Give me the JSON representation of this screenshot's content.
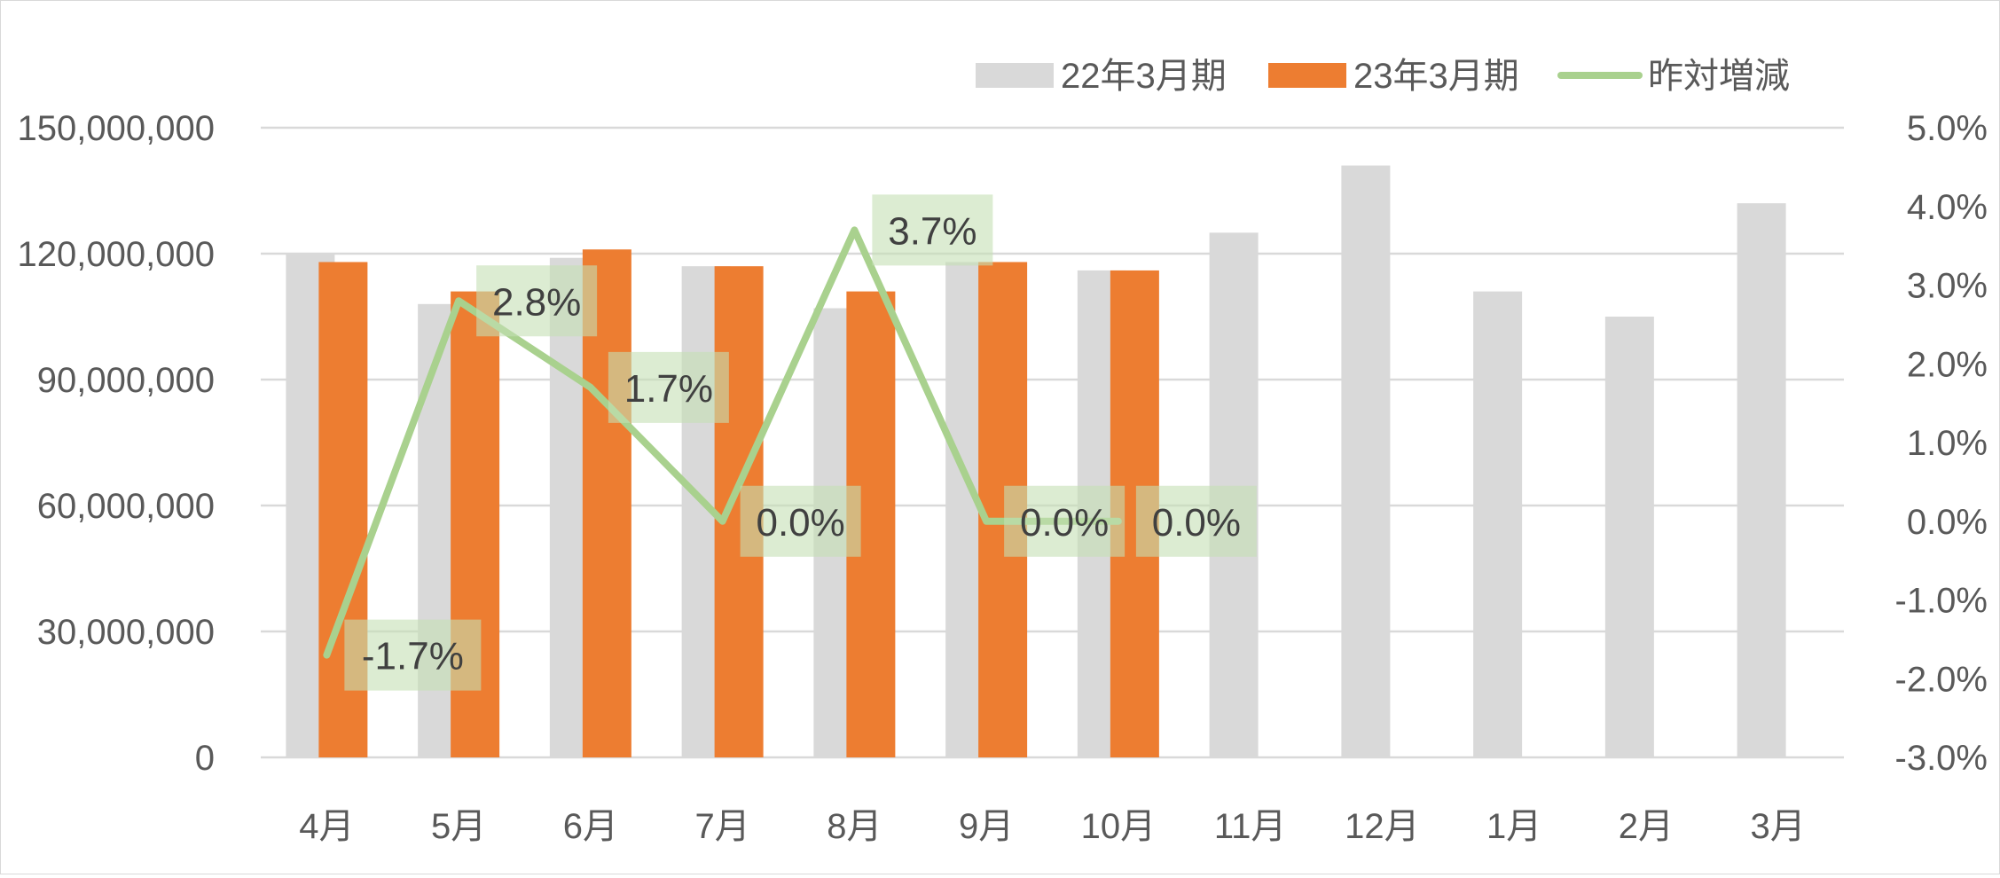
{
  "chart_data": {
    "type": "bar",
    "categories": [
      "4月",
      "5月",
      "6月",
      "7月",
      "8月",
      "9月",
      "10月",
      "11月",
      "12月",
      "1月",
      "2月",
      "3月"
    ],
    "series": [
      {
        "name": "22年3月期",
        "type": "bar",
        "axis": "left",
        "values": [
          120000000,
          108000000,
          119000000,
          117000000,
          107000000,
          118000000,
          116000000,
          125000000,
          141000000,
          111000000,
          105000000,
          132000000
        ]
      },
      {
        "name": "23年3月期",
        "type": "bar",
        "axis": "right-of-pair",
        "values": [
          118000000,
          111000000,
          121000000,
          117000000,
          111000000,
          118000000,
          116000000,
          null,
          null,
          null,
          null,
          null
        ]
      },
      {
        "name": "昨対増減",
        "type": "line",
        "axis": "secondary",
        "values": [
          -1.7,
          2.8,
          1.7,
          0.0,
          3.7,
          0.0,
          0.0,
          null,
          null,
          null,
          null,
          null
        ],
        "data_labels": [
          "-1.7%",
          "2.8%",
          "1.7%",
          "0.0%",
          "3.7%",
          "0.0%",
          "0.0%"
        ]
      }
    ],
    "y_axis": {
      "ylim": [
        0,
        150000000
      ],
      "ticks": [
        0,
        30000000,
        60000000,
        90000000,
        120000000,
        150000000
      ],
      "tick_labels": [
        "0",
        "30,000,000",
        "60,000,000",
        "90,000,000",
        "120,000,000",
        "150,000,000"
      ]
    },
    "y2_axis": {
      "ylim": [
        -3.0,
        5.0
      ],
      "ticks": [
        -3,
        -2,
        -1,
        0,
        1,
        2,
        3,
        4,
        5
      ],
      "tick_labels": [
        "-3.0%",
        "-2.0%",
        "-1.0%",
        "0.0%",
        "1.0%",
        "2.0%",
        "3.0%",
        "4.0%",
        "5.0%"
      ]
    },
    "grid": true,
    "legend_position": "top-right",
    "colors": {
      "bar_22": "#d9d9d9",
      "bar_23": "#ed7d31",
      "line": "#a9d18e",
      "label_bg": "#c5e0b4",
      "gridline": "#d9d9d9",
      "tick_text": "#595959",
      "label_text": "#404040"
    }
  }
}
